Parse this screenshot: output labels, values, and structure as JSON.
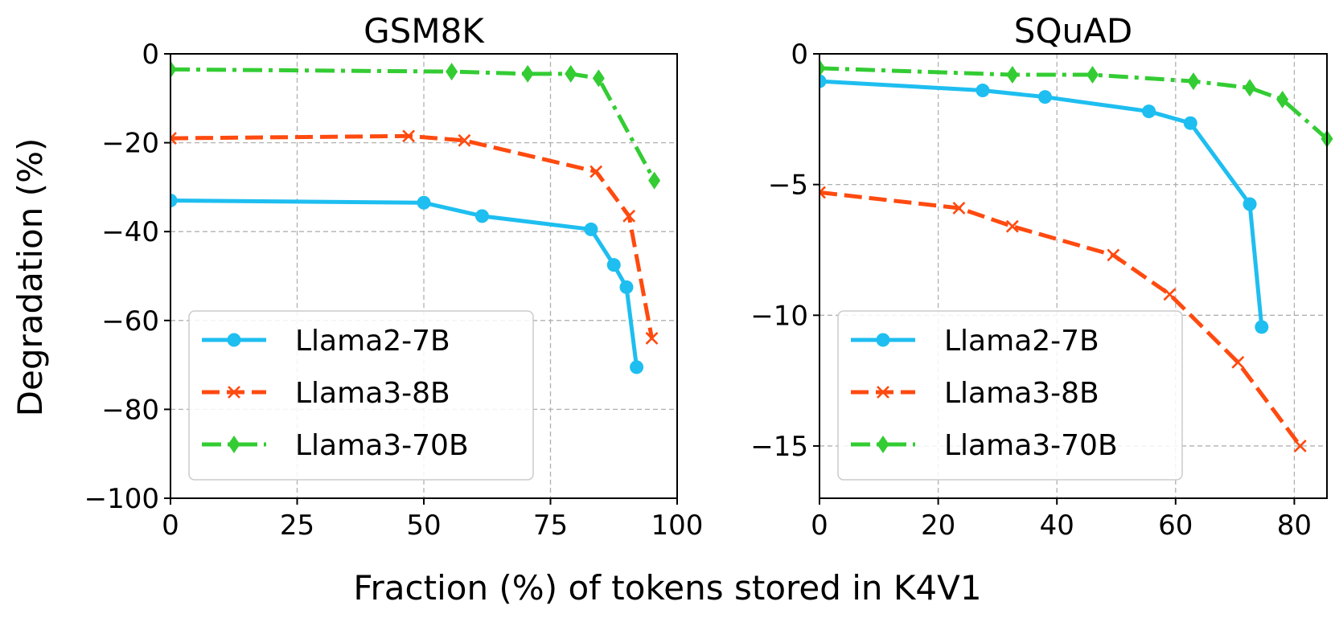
{
  "figure": {
    "ylabel": "Degradation (%)",
    "xlabel": "Fraction (%) of tokens stored in K4V1"
  },
  "colors": {
    "Llama2-7B": "#1ebef0",
    "Llama3-8B": "#ff4a0f",
    "Llama3-70B": "#33cc33"
  },
  "chart_data": [
    {
      "type": "line",
      "title": "GSM8K",
      "xlabel": "Fraction (%) of tokens stored in K4V1",
      "ylabel": "Degradation (%)",
      "xlim": [
        0,
        100
      ],
      "ylim": [
        -100,
        0
      ],
      "xticks": [
        0,
        25,
        50,
        75,
        100
      ],
      "xtick_labels": [
        "0",
        "25",
        "50",
        "75",
        "100"
      ],
      "yticks": [
        0,
        -20,
        -40,
        -60,
        -80,
        -100
      ],
      "ytick_labels": [
        "0",
        "−20",
        "−40",
        "−60",
        "−80",
        "−100"
      ],
      "grid": true,
      "legend_position": "lower-left",
      "series": [
        {
          "name": "Llama2-7B",
          "marker": "circle",
          "dash": "solid",
          "x": [
            0,
            50,
            61.5,
            83,
            87.5,
            90,
            92
          ],
          "y": [
            -33,
            -33.5,
            -36.5,
            -39.5,
            -47.5,
            -52.5,
            -70.5
          ]
        },
        {
          "name": "Llama3-8B",
          "marker": "x",
          "dash": "dashed",
          "x": [
            0,
            47,
            58,
            84,
            90.5,
            95
          ],
          "y": [
            -19,
            -18.5,
            -19.5,
            -26.5,
            -36.5,
            -64
          ]
        },
        {
          "name": "Llama3-70B",
          "marker": "diamond",
          "dash": "dashdot",
          "x": [
            0,
            55.5,
            70.5,
            79,
            84.5,
            95.5
          ],
          "y": [
            -3.5,
            -4,
            -4.5,
            -4.5,
            -5.5,
            -28.5
          ]
        }
      ]
    },
    {
      "type": "line",
      "title": "SQuAD",
      "xlabel": "Fraction (%) of tokens stored in K4V1",
      "ylabel": "Degradation (%)",
      "xlim": [
        0,
        85.5
      ],
      "ylim": [
        -17,
        0
      ],
      "xticks": [
        0,
        20,
        40,
        60,
        80
      ],
      "xtick_labels": [
        "0",
        "20",
        "40",
        "60",
        "80"
      ],
      "yticks": [
        0,
        -5,
        -10,
        -15
      ],
      "ytick_labels": [
        "0",
        "−5",
        "−10",
        "−15"
      ],
      "grid": true,
      "legend_position": "lower-left",
      "series": [
        {
          "name": "Llama2-7B",
          "marker": "circle",
          "dash": "solid",
          "x": [
            0,
            27.5,
            38,
            55.5,
            62.5,
            72.5,
            74.5
          ],
          "y": [
            -1.05,
            -1.4,
            -1.65,
            -2.2,
            -2.65,
            -5.75,
            -10.45
          ]
        },
        {
          "name": "Llama3-8B",
          "marker": "x",
          "dash": "dashed",
          "x": [
            0,
            23.5,
            32.5,
            49.5,
            59,
            70.5,
            81
          ],
          "y": [
            -5.3,
            -5.9,
            -6.6,
            -7.7,
            -9.2,
            -11.8,
            -15
          ]
        },
        {
          "name": "Llama3-70B",
          "marker": "diamond",
          "dash": "dashdot",
          "x": [
            0,
            32.5,
            46,
            63,
            72.5,
            78,
            85.5
          ],
          "y": [
            -0.55,
            -0.8,
            -0.8,
            -1.05,
            -1.3,
            -1.75,
            -3.25
          ]
        }
      ]
    }
  ]
}
